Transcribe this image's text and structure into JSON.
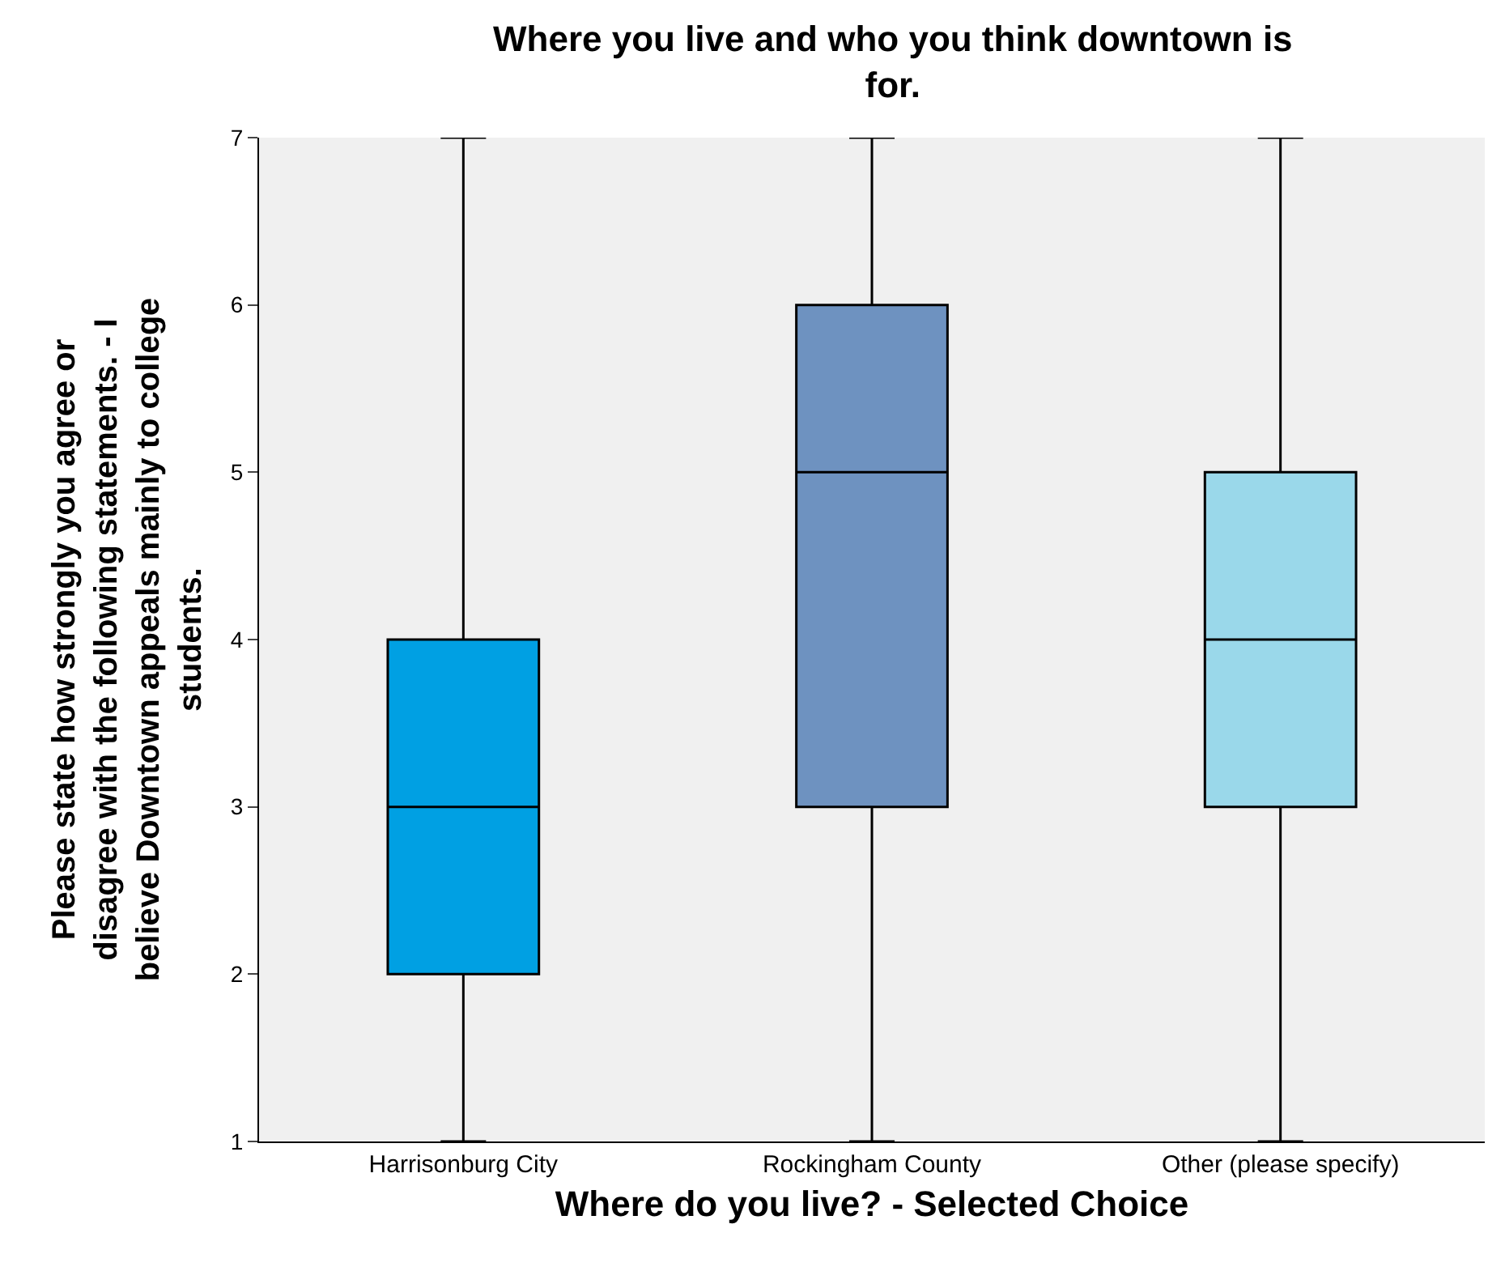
{
  "chart_data": {
    "type": "box",
    "title": "Where you live and who you think downtown is\nfor.",
    "xlabel": "Where do you live? - Selected Choice",
    "ylabel": "Please state how strongly you agree or\ndisagree with the following statements. - I\nbelieve Downtown appeals mainly to college\nstudents.",
    "categories": [
      "Harrisonburg City",
      "Rockingham County",
      "Other (please specify)"
    ],
    "colors": [
      "#00a0e3",
      "#6e92c0",
      "#9ad8ea"
    ],
    "boxes": [
      {
        "low": 1,
        "q1": 2,
        "median": 3,
        "q3": 4,
        "high": 7
      },
      {
        "low": 1,
        "q1": 3,
        "median": 5,
        "q3": 6,
        "high": 7
      },
      {
        "low": 1,
        "q1": 3,
        "median": 4,
        "q3": 5,
        "high": 7
      }
    ],
    "ylim": [
      1,
      7
    ],
    "yticks": [
      1,
      2,
      3,
      4,
      5,
      6,
      7
    ],
    "grid": false,
    "legend": false
  }
}
